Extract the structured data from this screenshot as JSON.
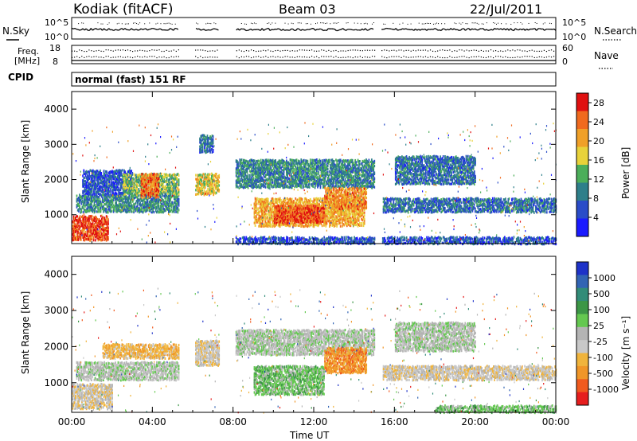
{
  "header": {
    "station": "Kodiak (fitACF)",
    "beam": "Beam 03",
    "date": "22/Jul/2011"
  },
  "status_panels": {
    "nsky_label": "N.Sky",
    "nsearch_label": "N.Search",
    "nsky_ticks": [
      "10^5",
      "10^0"
    ],
    "nsearch_ticks": [
      "10^5",
      "10^0"
    ],
    "freq_label_1": "Freq.",
    "freq_label_2": "[MHz]",
    "freq_ticks": [
      "18",
      "8"
    ],
    "nave_label": "Nave",
    "nave_ticks": [
      "60",
      "0"
    ],
    "cpid_label": "CPID",
    "cpid_value": "normal (fast) 151 RF"
  },
  "colors": {
    "power": [
      "#1a1aff",
      "#2a4cc8",
      "#2e7f8a",
      "#4cae5a",
      "#e8d23a",
      "#f0a028",
      "#f06a1e",
      "#e01010"
    ],
    "velocity": [
      "#e61e1e",
      "#f05a1e",
      "#f09628",
      "#f0b43c",
      "#c8c8c8",
      "#b4b4b4",
      "#64c850",
      "#3c9646",
      "#328c78",
      "#3264b4",
      "#1e32c8"
    ],
    "frame": "#000000"
  },
  "chart_data": [
    {
      "type": "heatmap",
      "title": "Power",
      "ylabel": "Slant Range [km]",
      "xlabel": "Time UT",
      "x_ticks": [
        "00:00",
        "04:00",
        "08:00",
        "12:00",
        "16:00",
        "20:00",
        "00:00"
      ],
      "y_ticks": [
        "1000",
        "2000",
        "3000",
        "4000"
      ],
      "ylim": [
        180,
        4500
      ],
      "xlim_hours": [
        0,
        24
      ],
      "colorbar": {
        "label": "Power [dB]",
        "ticks": [
          "4",
          "8",
          "12",
          "16",
          "20",
          "24",
          "28"
        ],
        "range": [
          0,
          30
        ]
      },
      "data_gaps_hours": [
        [
          5.3,
          6.1
        ],
        [
          7.3,
          8.1
        ],
        [
          15.0,
          15.35
        ]
      ],
      "echo_bands": [
        {
          "t0": 0.0,
          "t1": 1.8,
          "r0": 300,
          "r1": 1000,
          "level": 26
        },
        {
          "t0": 0.2,
          "t1": 5.3,
          "r0": 1100,
          "r1": 1600,
          "level": 10
        },
        {
          "t0": 0.5,
          "t1": 3.0,
          "r0": 1600,
          "r1": 2300,
          "level": 6
        },
        {
          "t0": 2.5,
          "t1": 5.3,
          "r0": 1600,
          "r1": 2200,
          "level": 14
        },
        {
          "t0": 3.4,
          "t1": 4.3,
          "r0": 1500,
          "r1": 2200,
          "level": 24
        },
        {
          "t0": 6.1,
          "t1": 7.3,
          "r0": 1600,
          "r1": 2200,
          "level": 18
        },
        {
          "t0": 6.3,
          "t1": 7.0,
          "r0": 2800,
          "r1": 3300,
          "level": 8
        },
        {
          "t0": 8.1,
          "t1": 15.0,
          "r0": 1800,
          "r1": 2600,
          "level": 10
        },
        {
          "t0": 9.0,
          "t1": 14.5,
          "r0": 700,
          "r1": 1500,
          "level": 20
        },
        {
          "t0": 10.0,
          "t1": 12.5,
          "r0": 800,
          "r1": 1300,
          "level": 26
        },
        {
          "t0": 12.5,
          "t1": 14.6,
          "r0": 1200,
          "r1": 1800,
          "level": 22
        },
        {
          "t0": 15.4,
          "t1": 24.0,
          "r0": 1100,
          "r1": 1500,
          "level": 8
        },
        {
          "t0": 16.0,
          "t1": 20.0,
          "r0": 1900,
          "r1": 2700,
          "level": 8
        },
        {
          "t0": 8.1,
          "t1": 24.0,
          "r0": 200,
          "r1": 400,
          "level": 6
        }
      ]
    },
    {
      "type": "heatmap",
      "title": "Velocity",
      "ylabel": "Slant Range [km]",
      "xlabel": "Time UT",
      "x_ticks": [
        "00:00",
        "04:00",
        "08:00",
        "12:00",
        "16:00",
        "20:00",
        "00:00"
      ],
      "y_ticks": [
        "1000",
        "2000",
        "3000",
        "4000"
      ],
      "ylim": [
        180,
        4500
      ],
      "xlim_hours": [
        0,
        24
      ],
      "colorbar": {
        "label": "Velocity [m s⁻¹]",
        "ticks": [
          "-1000",
          "-500",
          "-100",
          "-25",
          "25",
          "100",
          "500",
          "1000"
        ]
      },
      "data_gaps_hours": [
        [
          5.3,
          6.1
        ],
        [
          7.3,
          8.1
        ],
        [
          15.0,
          15.35
        ]
      ],
      "echo_bands": [
        {
          "t0": 0.0,
          "t1": 2.0,
          "r0": 300,
          "r1": 1000,
          "level": 4
        },
        {
          "t0": 0.2,
          "t1": 5.3,
          "r0": 1100,
          "r1": 1600,
          "level": 5
        },
        {
          "t0": 1.5,
          "t1": 5.3,
          "r0": 1700,
          "r1": 2100,
          "level": 3
        },
        {
          "t0": 6.1,
          "t1": 7.3,
          "r0": 1500,
          "r1": 2200,
          "level": 4
        },
        {
          "t0": 8.1,
          "t1": 15.0,
          "r0": 1800,
          "r1": 2500,
          "level": 5
        },
        {
          "t0": 9.0,
          "t1": 12.5,
          "r0": 700,
          "r1": 1500,
          "level": 6
        },
        {
          "t0": 12.5,
          "t1": 14.6,
          "r0": 1300,
          "r1": 2000,
          "level": 2
        },
        {
          "t0": 15.4,
          "t1": 24.0,
          "r0": 1100,
          "r1": 1500,
          "level": 4
        },
        {
          "t0": 16.0,
          "t1": 20.0,
          "r0": 1900,
          "r1": 2700,
          "level": 5
        },
        {
          "t0": 18.0,
          "t1": 24.0,
          "r0": 200,
          "r1": 400,
          "level": 6
        }
      ]
    }
  ]
}
